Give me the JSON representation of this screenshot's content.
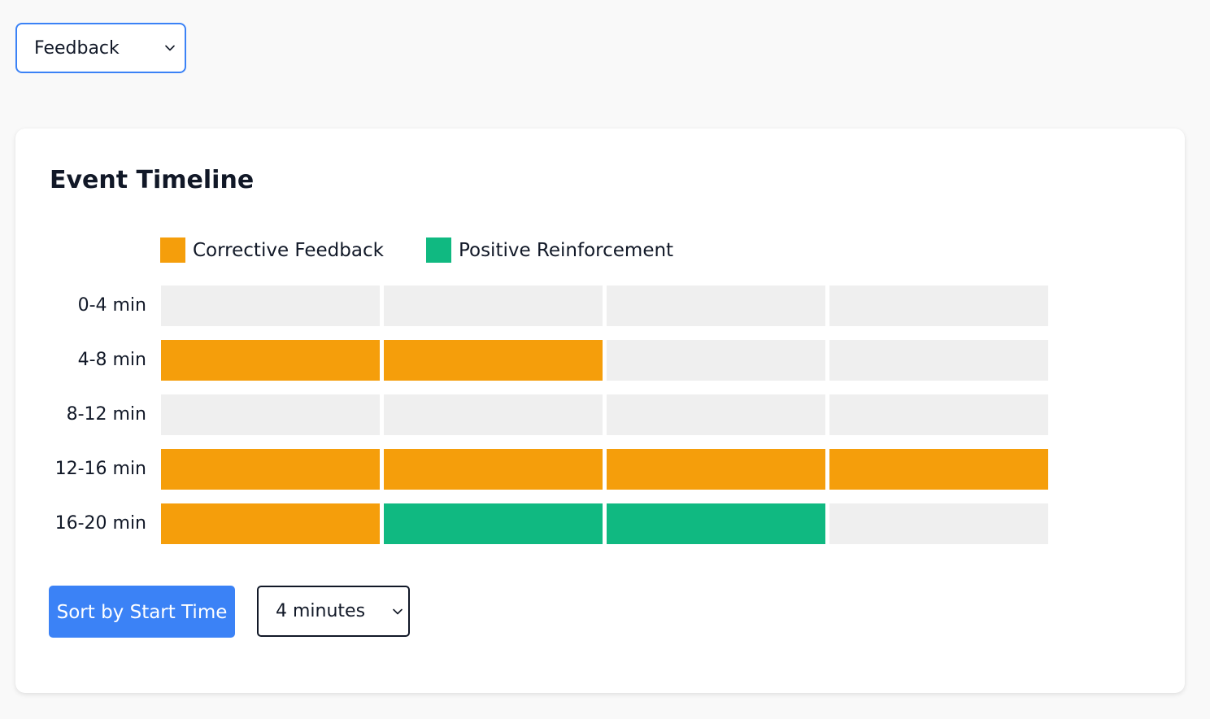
{
  "top_select": {
    "value": "Feedback",
    "icon": "chevron-down-icon"
  },
  "card": {
    "title": "Event Timeline"
  },
  "legend": [
    {
      "label": "Corrective Feedback",
      "color": "#f59e0b"
    },
    {
      "label": "Positive Reinforcement",
      "color": "#10b981"
    }
  ],
  "colors": {
    "empty": "#efefef",
    "accent": "#3b82f6"
  },
  "timeline": {
    "rows": [
      {
        "label": "0-4 min",
        "cells": [
          "empty",
          "empty",
          "empty",
          "empty"
        ]
      },
      {
        "label": "4-8 min",
        "cells": [
          "corrective",
          "corrective",
          "empty",
          "empty"
        ]
      },
      {
        "label": "8-12 min",
        "cells": [
          "empty",
          "empty",
          "empty",
          "empty"
        ]
      },
      {
        "label": "12-16 min",
        "cells": [
          "corrective",
          "corrective",
          "corrective",
          "corrective"
        ]
      },
      {
        "label": "16-20 min",
        "cells": [
          "corrective",
          "positive",
          "positive",
          "empty"
        ]
      }
    ]
  },
  "controls": {
    "sort_label": "Sort by Start Time",
    "interval_value": "4 minutes",
    "interval_icon": "chevron-down-icon"
  }
}
